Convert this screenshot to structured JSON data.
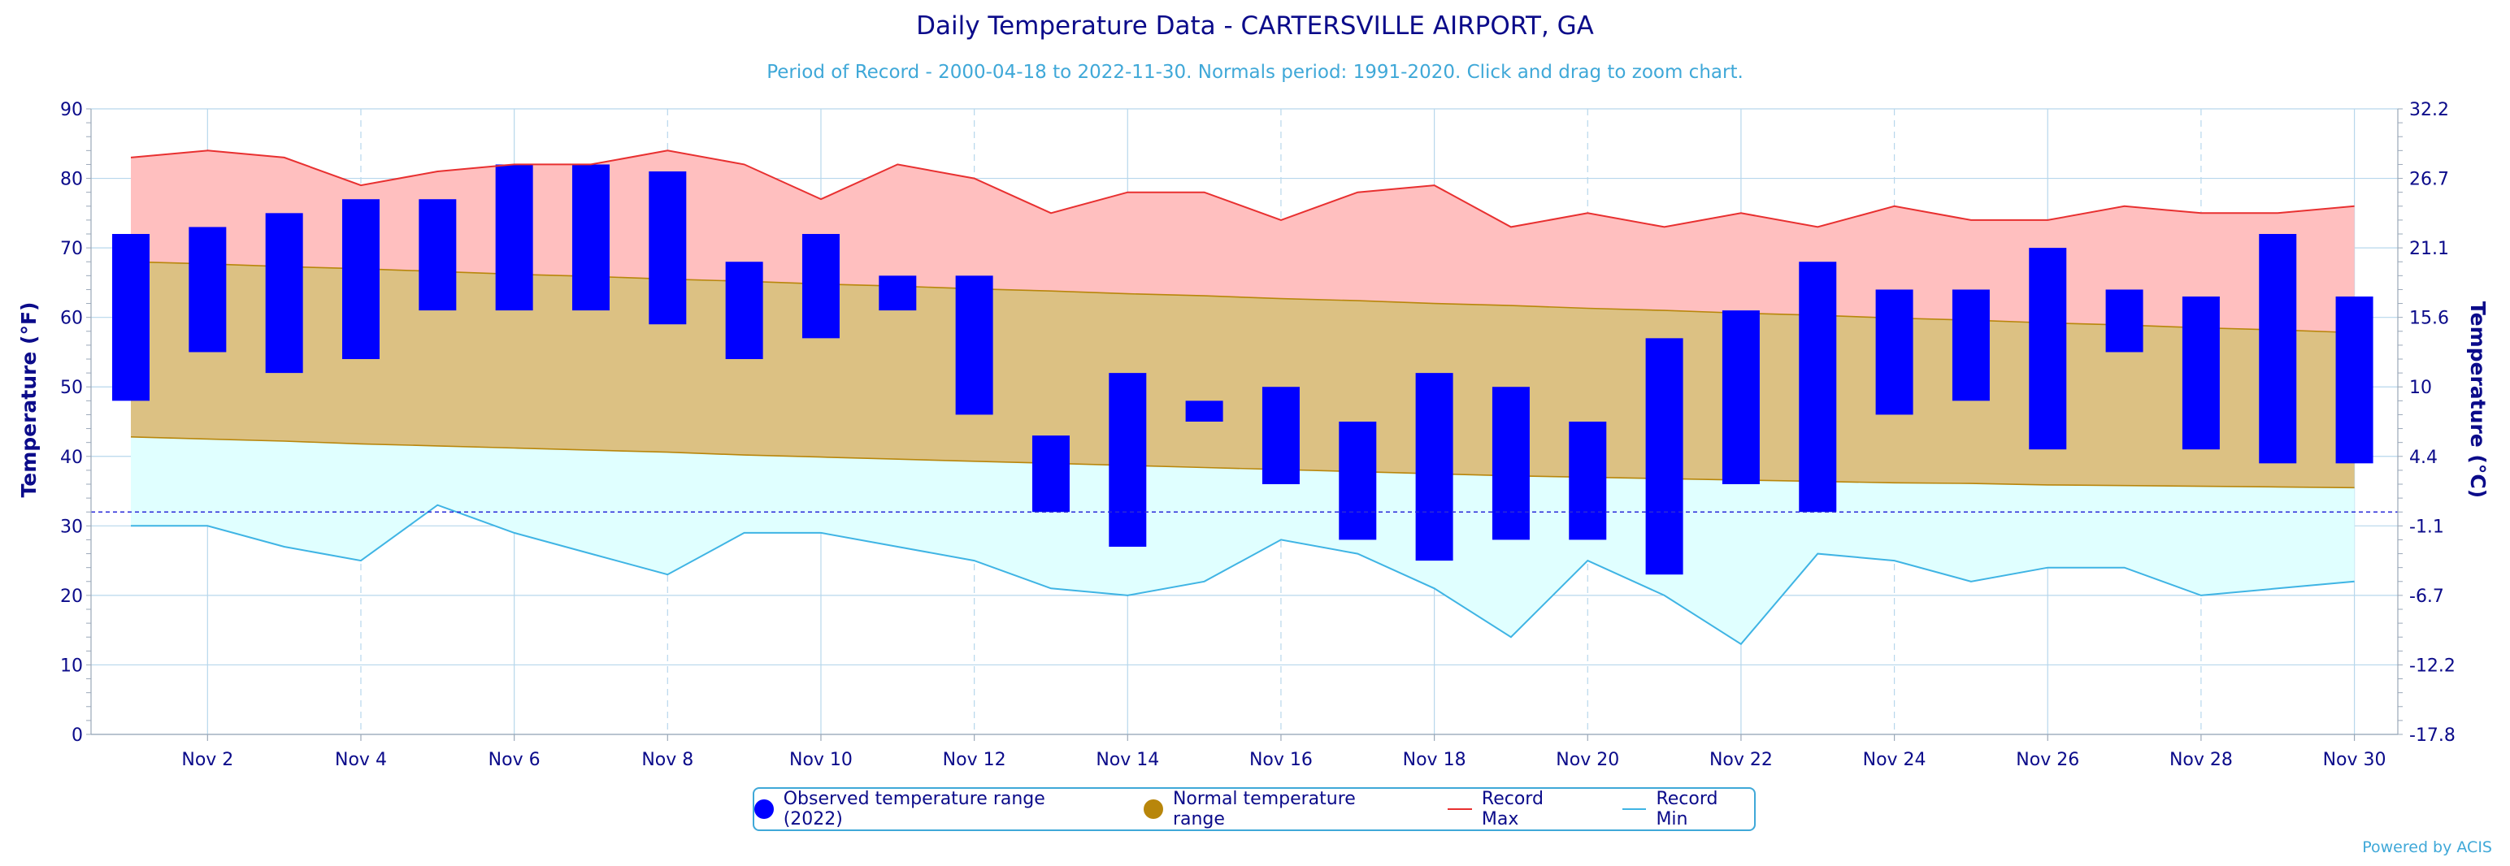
{
  "header": {
    "title": "Daily Temperature Data - CARTERSVILLE AIRPORT, GA",
    "subtitle": "Period of Record - 2000-04-18 to 2022-11-30. Normals period: 1991-2020. Click and drag to zoom chart."
  },
  "colors": {
    "observed": "#0000ff",
    "normal_fill": "#dcc183",
    "normal_line": "#b8860b",
    "normal_legend": "#b8860b",
    "record_max_fill": "#ffbfbf",
    "record_max_line": "#e83030",
    "record_min_fill": "#e0ffff",
    "record_min_line": "#3fb4e4",
    "grid": "#b7d7ec",
    "axis_text": "#0b0b8a",
    "freezing_line": "#2a2ad8"
  },
  "chart_data": {
    "type": "bar",
    "x": [
      "Nov 1",
      "Nov 2",
      "Nov 3",
      "Nov 4",
      "Nov 5",
      "Nov 6",
      "Nov 7",
      "Nov 8",
      "Nov 9",
      "Nov 10",
      "Nov 11",
      "Nov 12",
      "Nov 13",
      "Nov 14",
      "Nov 15",
      "Nov 16",
      "Nov 17",
      "Nov 18",
      "Nov 19",
      "Nov 20",
      "Nov 21",
      "Nov 22",
      "Nov 23",
      "Nov 24",
      "Nov 25",
      "Nov 26",
      "Nov 27",
      "Nov 28",
      "Nov 29",
      "Nov 30"
    ],
    "x_tick_labels": [
      "Nov 2",
      "Nov 4",
      "Nov 6",
      "Nov 8",
      "Nov 10",
      "Nov 12",
      "Nov 14",
      "Nov 16",
      "Nov 18",
      "Nov 20",
      "Nov 22",
      "Nov 24",
      "Nov 26",
      "Nov 28",
      "Nov 30"
    ],
    "ylabel": "Temperature (°F)",
    "y2label": "Temperature (°C)",
    "ylim": [
      0,
      90
    ],
    "y_ticks": [
      0,
      10,
      20,
      30,
      40,
      50,
      60,
      70,
      80,
      90
    ],
    "y2_tick_labels": [
      "-17.8",
      "-12.2",
      "-6.7",
      "-1.1",
      "4.4",
      "10",
      "15.6",
      "21.1",
      "26.7",
      "32.2"
    ],
    "freezing_line": 32,
    "grid": true,
    "legend_position": "bottom-center",
    "series": [
      {
        "name": "Observed temperature range (2022)",
        "kind": "range-bar",
        "high": [
          72,
          73,
          75,
          77,
          77,
          82,
          82,
          81,
          68,
          72,
          66,
          66,
          43,
          52,
          48,
          50,
          45,
          52,
          50,
          45,
          57,
          61,
          68,
          64,
          64,
          70,
          64,
          63,
          72,
          63
        ],
        "low": [
          48,
          55,
          52,
          54,
          61,
          61,
          61,
          59,
          54,
          57,
          61,
          46,
          32,
          27,
          45,
          36,
          28,
          25,
          28,
          28,
          23,
          36,
          32,
          46,
          48,
          41,
          55,
          41,
          39,
          39
        ]
      },
      {
        "name": "Normal temperature range",
        "kind": "range-area",
        "high": [
          68,
          67.7,
          67.3,
          67,
          66.6,
          66.2,
          65.9,
          65.5,
          65.2,
          64.8,
          64.5,
          64.1,
          63.8,
          63.4,
          63.1,
          62.7,
          62.4,
          62,
          61.7,
          61.3,
          61,
          60.6,
          60.3,
          59.9,
          59.6,
          59.2,
          58.9,
          58.5,
          58.2,
          57.8
        ],
        "low": [
          42.8,
          42.5,
          42.2,
          41.8,
          41.5,
          41.2,
          40.9,
          40.6,
          40.2,
          39.9,
          39.6,
          39.3,
          39,
          38.7,
          38.4,
          38.1,
          37.8,
          37.5,
          37.2,
          37,
          36.8,
          36.6,
          36.4,
          36.2,
          36.1,
          35.9,
          35.8,
          35.7,
          35.6,
          35.5
        ]
      },
      {
        "name": "Record Max",
        "kind": "line",
        "values": [
          83,
          84,
          83,
          79,
          81,
          82,
          82,
          84,
          82,
          77,
          82,
          80,
          75,
          78,
          78,
          74,
          78,
          79,
          73,
          75,
          73,
          75,
          73,
          76,
          74,
          74,
          76,
          75,
          75,
          76
        ]
      },
      {
        "name": "Record Min",
        "kind": "line",
        "values": [
          30,
          30,
          27,
          25,
          33,
          29,
          26,
          23,
          29,
          29,
          27,
          25,
          21,
          20,
          22,
          28,
          26,
          21,
          14,
          25,
          20,
          13,
          26,
          25,
          22,
          24,
          24,
          20,
          21,
          22
        ]
      }
    ]
  },
  "legend": {
    "observed_label": "Observed temperature range (2022)",
    "normal_label": "Normal temperature range",
    "record_max_label": "Record Max",
    "record_min_label": "Record Min"
  },
  "footer": {
    "credit": "Powered by ACIS"
  }
}
